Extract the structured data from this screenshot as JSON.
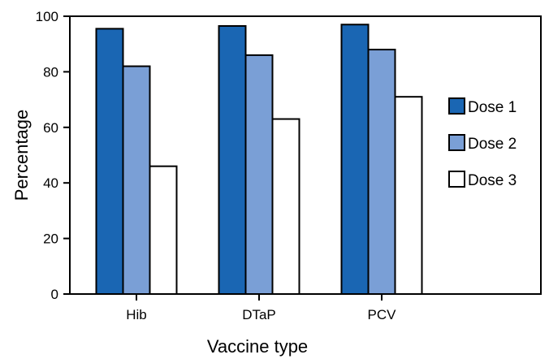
{
  "chart_data": {
    "type": "bar",
    "title": "",
    "xlabel": "Vaccine type",
    "ylabel": "Percentage",
    "categories": [
      "Hib",
      "DTaP",
      "PCV"
    ],
    "ylim": [
      0,
      100
    ],
    "yticks": [
      0,
      20,
      40,
      60,
      80,
      100
    ],
    "grid": false,
    "legend_position": "right",
    "series": [
      {
        "name": "Dose 1",
        "color": "#1a66b3",
        "values": [
          95.5,
          96.5,
          97
        ]
      },
      {
        "name": "Dose 2",
        "color": "#7a9fd6",
        "values": [
          82,
          86,
          88
        ]
      },
      {
        "name": "Dose 3",
        "color": "#ffffff",
        "values": [
          46,
          63,
          71
        ]
      }
    ]
  }
}
